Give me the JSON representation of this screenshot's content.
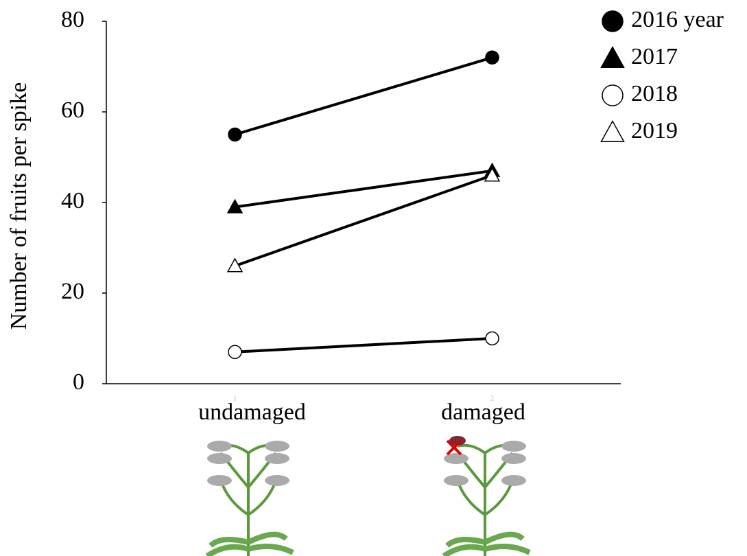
{
  "chart_data": {
    "type": "line",
    "ylabel": "Number of fruits per spike",
    "categories": [
      "undamaged",
      "damaged"
    ],
    "x": [
      1,
      2
    ],
    "xlim": [
      0.5,
      2.5
    ],
    "ylim": [
      0,
      80
    ],
    "yticks": [
      0,
      20,
      40,
      60,
      80
    ],
    "line_color": "#000000",
    "series": [
      {
        "name": "2016 year",
        "marker": "circle",
        "filled": true,
        "color": "#000000",
        "values": [
          55,
          72
        ]
      },
      {
        "name": "2017",
        "marker": "triangle",
        "filled": true,
        "color": "#000000",
        "values": [
          39,
          47
        ]
      },
      {
        "name": "2018",
        "marker": "circle",
        "filled": false,
        "color": "#000000",
        "values": [
          7,
          10
        ]
      },
      {
        "name": "2019",
        "marker": "triangle",
        "filled": false,
        "color": "#000000",
        "values": [
          26,
          46
        ]
      }
    ],
    "legend": "top-right"
  }
}
